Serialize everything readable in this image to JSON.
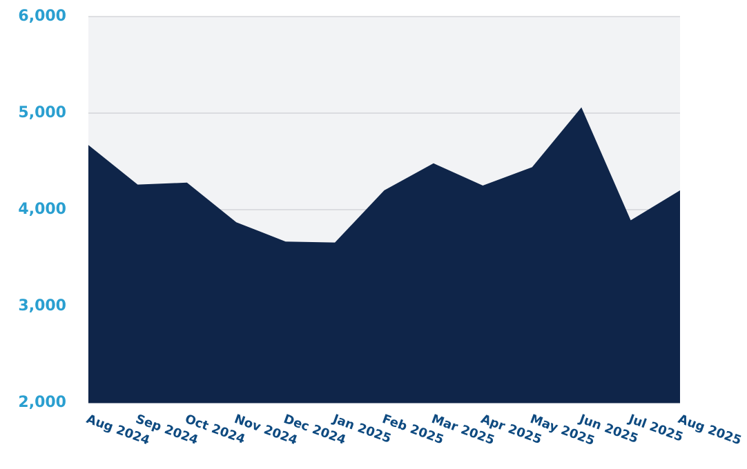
{
  "chart_data": {
    "type": "area",
    "x": [
      "Aug 2024",
      "Sep 2024",
      "Oct 2024",
      "Nov 2024",
      "Dec 2024",
      "Jan 2025",
      "Feb 2025",
      "Mar 2025",
      "Apr 2025",
      "May 2025",
      "Jun 2025",
      "Jul 2025",
      "Aug 2025"
    ],
    "values": [
      4670,
      4260,
      4280,
      3870,
      3670,
      3660,
      4200,
      4480,
      4250,
      4440,
      5060,
      3890,
      4200
    ],
    "color": "#0f2549",
    "ylim": [
      2000,
      6000
    ],
    "yticks": [
      {
        "value": 2000,
        "label": "2,000"
      },
      {
        "value": 3000,
        "label": "3,000"
      },
      {
        "value": 4000,
        "label": "4,000"
      },
      {
        "value": 5000,
        "label": "5,000"
      },
      {
        "value": 6000,
        "label": "6,000"
      }
    ],
    "grid": true
  }
}
